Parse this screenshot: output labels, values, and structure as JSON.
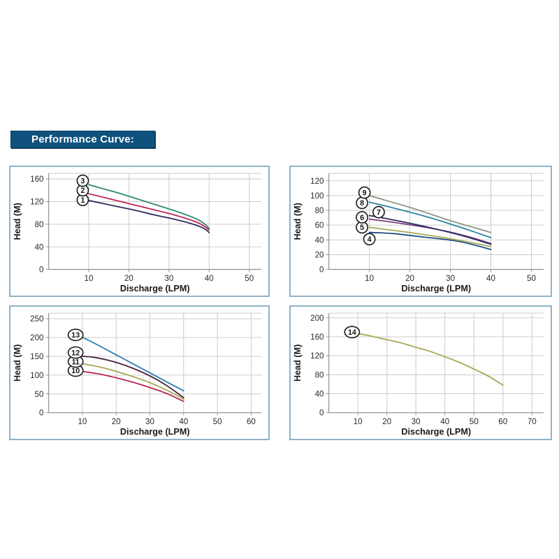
{
  "title": {
    "label": "Performance Curve:"
  },
  "theme": {
    "banner_bg": "#0f527e",
    "banner_text": "#ffffff",
    "panel_border": "#8fb2c9",
    "panel_bg": "#ffffff",
    "grid_color": "#cccccc",
    "axis_color": "#999999",
    "tick_label_color": "#2a2a2a",
    "axis_title_color": "#1a1a1a",
    "badge_fill": "#ffffff",
    "badge_border": "#1a1a1a",
    "badge_text": "#111111"
  },
  "chart_data": [
    {
      "id": "top-left",
      "type": "line",
      "xlabel": "Discharge (LPM)",
      "ylabel": "Head (M)",
      "xlim": [
        0,
        53
      ],
      "ylim": [
        0,
        170
      ],
      "xticks": [
        10,
        20,
        30,
        40,
        50
      ],
      "yticks": [
        0,
        40,
        80,
        120,
        160
      ],
      "grid": true,
      "legend_position": "circled-labels-on-plot",
      "series": [
        {
          "name": "1",
          "color": "#2b2d60",
          "label_at": [
            8.5,
            123
          ],
          "points": [
            [
              10,
              122
            ],
            [
              14,
              116
            ],
            [
              18,
              110
            ],
            [
              22,
              104
            ],
            [
              26,
              97
            ],
            [
              30,
              91
            ],
            [
              33,
              86
            ],
            [
              36,
              80
            ],
            [
              38,
              75
            ],
            [
              39.3,
              70
            ],
            [
              40,
              65
            ]
          ]
        },
        {
          "name": "2",
          "color": "#c02858",
          "label_at": [
            8.5,
            140
          ],
          "points": [
            [
              10,
              134
            ],
            [
              14,
              127
            ],
            [
              18,
              120
            ],
            [
              22,
              113
            ],
            [
              26,
              106
            ],
            [
              30,
              99
            ],
            [
              33,
              93
            ],
            [
              36,
              86
            ],
            [
              38,
              80
            ],
            [
              39.3,
              74
            ],
            [
              40,
              70
            ]
          ]
        },
        {
          "name": "3",
          "color": "#2e8b6e",
          "label_at": [
            8.5,
            157
          ],
          "points": [
            [
              10,
              150
            ],
            [
              14,
              142
            ],
            [
              18,
              134
            ],
            [
              22,
              125
            ],
            [
              26,
              116
            ],
            [
              30,
              107
            ],
            [
              33,
              100
            ],
            [
              36,
              92
            ],
            [
              38,
              85
            ],
            [
              39.3,
              78
            ],
            [
              40,
              72
            ]
          ]
        }
      ]
    },
    {
      "id": "top-right",
      "type": "line",
      "xlabel": "Discharge (LPM)",
      "ylabel": "Head (M)",
      "xlim": [
        0,
        53
      ],
      "ylim": [
        0,
        130
      ],
      "xticks": [
        10,
        20,
        30,
        40,
        50
      ],
      "yticks": [
        0,
        20,
        40,
        60,
        80,
        100,
        120
      ],
      "grid": true,
      "legend_position": "circled-labels-on-plot",
      "series": [
        {
          "name": "4",
          "color": "#1f5080",
          "label_at": [
            10,
            41
          ],
          "points": [
            [
              10,
              50
            ],
            [
              13,
              49.5
            ],
            [
              16,
              48.5
            ],
            [
              20,
              46
            ],
            [
              24,
              43.5
            ],
            [
              28,
              41
            ],
            [
              32,
              38
            ],
            [
              36,
              33
            ],
            [
              40,
              27
            ]
          ]
        },
        {
          "name": "5",
          "color": "#a8a855",
          "label_at": [
            8.2,
            57
          ],
          "points": [
            [
              10,
              57
            ],
            [
              15,
              53.5
            ],
            [
              20,
              50
            ],
            [
              25,
              46
            ],
            [
              30,
              41.5
            ],
            [
              35,
              36.5
            ],
            [
              40,
              31
            ]
          ]
        },
        {
          "name": "6",
          "color": "#7d3c7d",
          "label_at": [
            8.2,
            70.5
          ],
          "points": [
            [
              10,
              68
            ],
            [
              15,
              64.5
            ],
            [
              20,
              60.5
            ],
            [
              25,
              56
            ],
            [
              30,
              50.5
            ],
            [
              35,
              43.5
            ],
            [
              40,
              35
            ]
          ]
        },
        {
          "name": "7",
          "color": "#2b2d60",
          "label_at": [
            12.3,
            77.5
          ],
          "points": [
            [
              10,
              73
            ],
            [
              15,
              68
            ],
            [
              20,
              62.5
            ],
            [
              25,
              56.5
            ],
            [
              30,
              50
            ],
            [
              35,
              42.5
            ],
            [
              40,
              34
            ]
          ]
        },
        {
          "name": "8",
          "color": "#2a85a8",
          "label_at": [
            8.2,
            90
          ],
          "points": [
            [
              10,
              91
            ],
            [
              15,
              84.5
            ],
            [
              20,
              77.5
            ],
            [
              25,
              70
            ],
            [
              30,
              61.5
            ],
            [
              35,
              52.5
            ],
            [
              40,
              43
            ]
          ]
        },
        {
          "name": "9",
          "color": "#8a9a85",
          "label_at": [
            8.8,
            104
          ],
          "points": [
            [
              10,
              100
            ],
            [
              15,
              92
            ],
            [
              20,
              84
            ],
            [
              25,
              75
            ],
            [
              30,
              66
            ],
            [
              35,
              58
            ],
            [
              40,
              50
            ]
          ]
        }
      ]
    },
    {
      "id": "bottom-left",
      "type": "line",
      "xlabel": "Discharge (LPM)",
      "ylabel": "Head (M)",
      "xlim": [
        0,
        63
      ],
      "ylim": [
        0,
        265
      ],
      "xticks": [
        10,
        20,
        30,
        40,
        50,
        60
      ],
      "yticks": [
        0,
        50,
        100,
        150,
        200,
        250
      ],
      "grid": true,
      "legend_position": "circled-labels-on-plot",
      "series": [
        {
          "name": "10",
          "color": "#b82952",
          "label_at": [
            8,
            112
          ],
          "points": [
            [
              10,
              110
            ],
            [
              15,
              103
            ],
            [
              20,
              93
            ],
            [
              25,
              81
            ],
            [
              30,
              67
            ],
            [
              35,
              51
            ],
            [
              40,
              30
            ]
          ]
        },
        {
          "name": "11",
          "color": "#a8a855",
          "label_at": [
            8,
            136
          ],
          "points": [
            [
              10,
              130
            ],
            [
              15,
              122
            ],
            [
              20,
              110
            ],
            [
              25,
              96
            ],
            [
              30,
              80
            ],
            [
              35,
              60
            ],
            [
              40,
              36
            ]
          ]
        },
        {
          "name": "12",
          "color": "#4d2342",
          "label_at": [
            8,
            160
          ],
          "points": [
            [
              10,
              150
            ],
            [
              13,
              148
            ],
            [
              17,
              141
            ],
            [
              21,
              131
            ],
            [
              25,
              118
            ],
            [
              30,
              98
            ],
            [
              35,
              72
            ],
            [
              40,
              40
            ]
          ]
        },
        {
          "name": "13",
          "color": "#2c7fb0",
          "label_at": [
            8,
            207
          ],
          "points": [
            [
              10,
              201
            ],
            [
              15,
              178
            ],
            [
              20,
              154
            ],
            [
              25,
              130
            ],
            [
              30,
              106
            ],
            [
              35,
              82
            ],
            [
              40,
              58
            ]
          ]
        }
      ]
    },
    {
      "id": "bottom-right",
      "type": "line",
      "xlabel": "Discharge (LPM)",
      "ylabel": "Head (M)",
      "xlim": [
        0,
        74
      ],
      "ylim": [
        0,
        210
      ],
      "xticks": [
        10,
        20,
        30,
        40,
        50,
        60,
        70
      ],
      "yticks": [
        0,
        40,
        80,
        120,
        160,
        200
      ],
      "grid": true,
      "legend_position": "circled-labels-on-plot",
      "series": [
        {
          "name": "14",
          "color": "#a8a855",
          "label_at": [
            8,
            170
          ],
          "points": [
            [
              10,
              167
            ],
            [
              15,
              161
            ],
            [
              20,
              154
            ],
            [
              25,
              147
            ],
            [
              30,
              138
            ],
            [
              35,
              129
            ],
            [
              40,
              118
            ],
            [
              45,
              106
            ],
            [
              50,
              92
            ],
            [
              55,
              77
            ],
            [
              60,
              58
            ]
          ]
        }
      ]
    }
  ]
}
